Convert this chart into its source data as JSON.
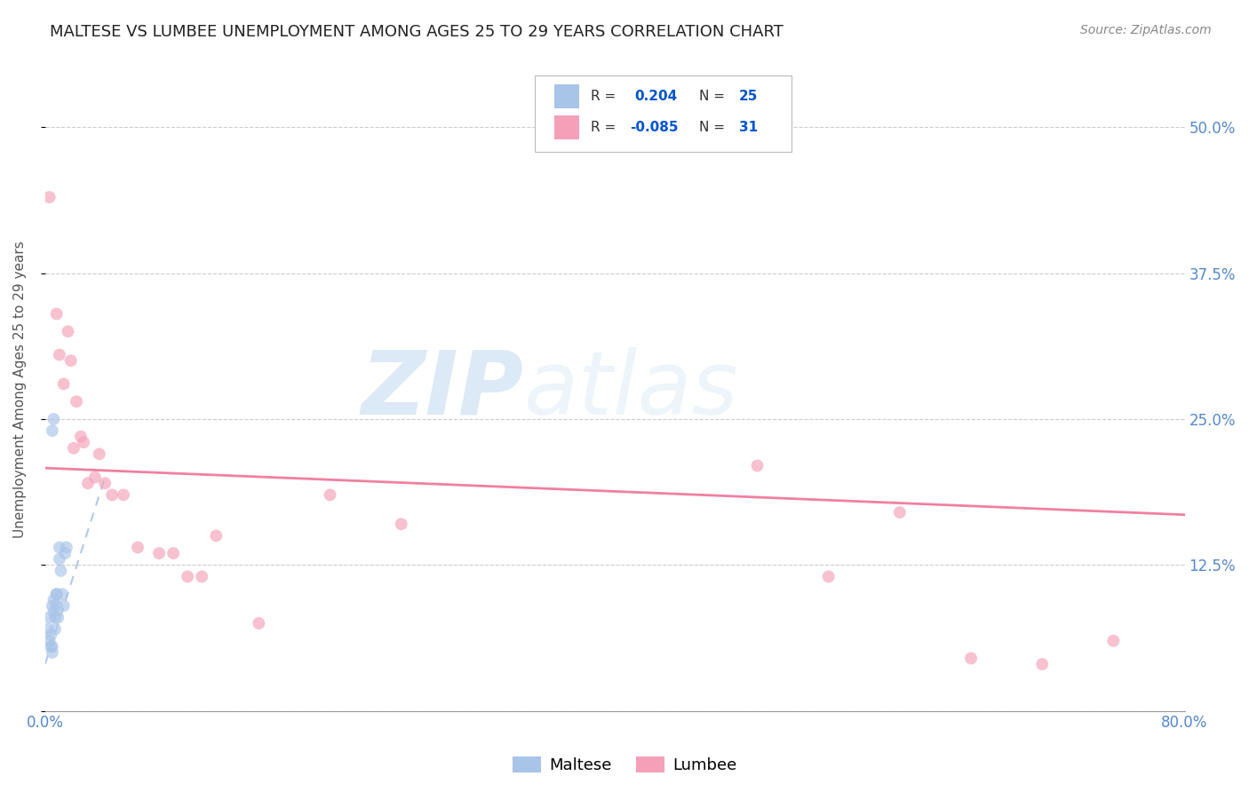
{
  "title": "MALTESE VS LUMBEE UNEMPLOYMENT AMONG AGES 25 TO 29 YEARS CORRELATION CHART",
  "source": "Source: ZipAtlas.com",
  "ylabel": "Unemployment Among Ages 25 to 29 years",
  "xlim": [
    0.0,
    0.8
  ],
  "ylim": [
    0.0,
    0.55
  ],
  "xticks": [
    0.0,
    0.1,
    0.2,
    0.3,
    0.4,
    0.5,
    0.6,
    0.7,
    0.8
  ],
  "xticklabels": [
    "0.0%",
    "",
    "",
    "",
    "",
    "",
    "",
    "",
    "80.0%"
  ],
  "ytick_positions": [
    0.0,
    0.125,
    0.25,
    0.375,
    0.5
  ],
  "ytick_labels_right": [
    "",
    "12.5%",
    "25.0%",
    "37.5%",
    "50.0%"
  ],
  "maltese_R": "0.204",
  "maltese_N": "25",
  "lumbee_R": "-0.085",
  "lumbee_N": "31",
  "maltese_color": "#a8c4e8",
  "maltese_edge_color": "#7aaad4",
  "lumbee_color": "#f4a0b8",
  "lumbee_edge_color": "#e070a0",
  "maltese_scatter_x": [
    0.002,
    0.003,
    0.003,
    0.004,
    0.004,
    0.005,
    0.005,
    0.005,
    0.006,
    0.006,
    0.007,
    0.007,
    0.008,
    0.008,
    0.009,
    0.01,
    0.01,
    0.011,
    0.012,
    0.013,
    0.014,
    0.015,
    0.005,
    0.006,
    0.008
  ],
  "maltese_scatter_y": [
    0.07,
    0.06,
    0.08,
    0.055,
    0.065,
    0.05,
    0.055,
    0.09,
    0.085,
    0.095,
    0.07,
    0.08,
    0.09,
    0.1,
    0.08,
    0.13,
    0.14,
    0.12,
    0.1,
    0.09,
    0.135,
    0.14,
    0.24,
    0.25,
    0.1
  ],
  "lumbee_scatter_x": [
    0.003,
    0.008,
    0.01,
    0.013,
    0.016,
    0.018,
    0.02,
    0.022,
    0.025,
    0.027,
    0.03,
    0.035,
    0.038,
    0.042,
    0.047,
    0.055,
    0.065,
    0.08,
    0.09,
    0.1,
    0.11,
    0.12,
    0.15,
    0.2,
    0.25,
    0.5,
    0.55,
    0.6,
    0.65,
    0.7,
    0.75
  ],
  "lumbee_scatter_y": [
    0.44,
    0.34,
    0.305,
    0.28,
    0.325,
    0.3,
    0.225,
    0.265,
    0.235,
    0.23,
    0.195,
    0.2,
    0.22,
    0.195,
    0.185,
    0.185,
    0.14,
    0.135,
    0.135,
    0.115,
    0.115,
    0.15,
    0.075,
    0.185,
    0.16,
    0.21,
    0.115,
    0.17,
    0.045,
    0.04,
    0.06
  ],
  "maltese_trendline_x": [
    0.0,
    0.042
  ],
  "maltese_trendline_y": [
    0.04,
    0.2
  ],
  "lumbee_trendline_x": [
    0.0,
    0.8
  ],
  "lumbee_trendline_y": [
    0.208,
    0.168
  ],
  "lumbee_trend_color": "#f080a0",
  "watermark_zip": "ZIP",
  "watermark_atlas": "atlas",
  "background_color": "#ffffff",
  "grid_color": "#cccccc",
  "marker_size": 100,
  "marker_alpha": 0.65,
  "title_fontsize": 13,
  "axis_label_fontsize": 11,
  "tick_fontsize": 12,
  "source_fontsize": 10,
  "tick_color": "#5588cc",
  "legend_R_color": "#0055cc"
}
